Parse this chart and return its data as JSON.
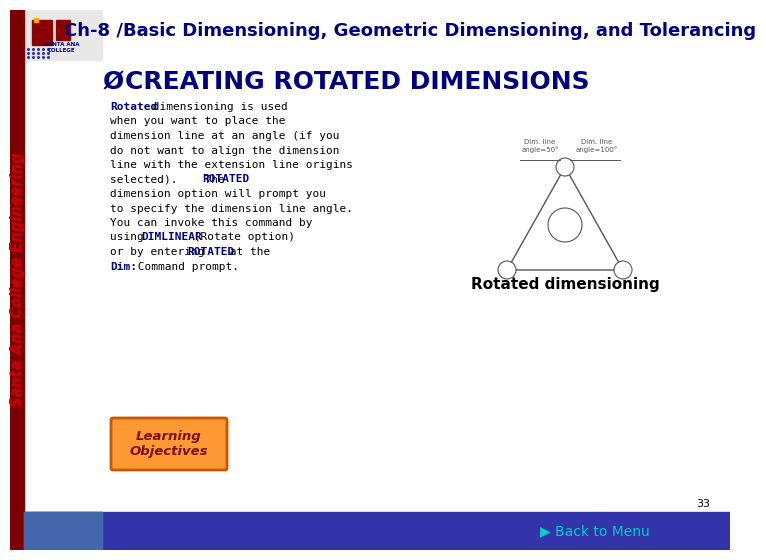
{
  "title": "Ch-8 /Basic Dimensioning, Geometric Dimensioning, and Tolerancing",
  "title_color": "#000080",
  "title_fontsize": 13,
  "heading": "CREATING ROTATED DIMENSIONS",
  "heading_color": "#000080",
  "heading_fontsize": 18,
  "caption": "Rotated dimensioning",
  "caption_color": "#000000",
  "caption_fontsize": 11,
  "learning_btn_text": "Learning\nObjectives",
  "footer_color": "#3333AA",
  "footer_text": "Back to Menu",
  "footer_text_color": "#00CCCC",
  "page_number": "33",
  "bg_color": "#FFFFFF",
  "body_lines": [
    [
      [
        "Rotated",
        true,
        "#000080"
      ],
      [
        " dimensioning is used",
        false,
        "#000000"
      ]
    ],
    [
      [
        "when you want to place the",
        false,
        "#000000"
      ]
    ],
    [
      [
        "dimension line at an angle (if you",
        false,
        "#000000"
      ]
    ],
    [
      [
        "do not want to align the dimension",
        false,
        "#000000"
      ]
    ],
    [
      [
        "line with the extension line origins",
        false,
        "#000000"
      ]
    ],
    [
      [
        "selected).    The ",
        false,
        "#000000"
      ],
      [
        "ROTATED",
        true,
        "#000080"
      ]
    ],
    [
      [
        "dimension option will prompt you",
        false,
        "#000000"
      ]
    ],
    [
      [
        "to specify the dimension line angle.",
        false,
        "#000000"
      ]
    ],
    [
      [
        "You can invoke this command by",
        false,
        "#000000"
      ]
    ],
    [
      [
        "using ",
        false,
        "#000000"
      ],
      [
        "DIMLINEAR",
        true,
        "#000080"
      ],
      [
        " (Rotate option)",
        false,
        "#000000"
      ]
    ],
    [
      [
        "or by entering ",
        false,
        "#000000"
      ],
      [
        "ROTATED",
        true,
        "#000080"
      ],
      [
        " at the",
        false,
        "#000000"
      ]
    ],
    [
      [
        "Dim:",
        true,
        "#000080"
      ],
      [
        " Command prompt.",
        false,
        "#000000"
      ]
    ]
  ]
}
